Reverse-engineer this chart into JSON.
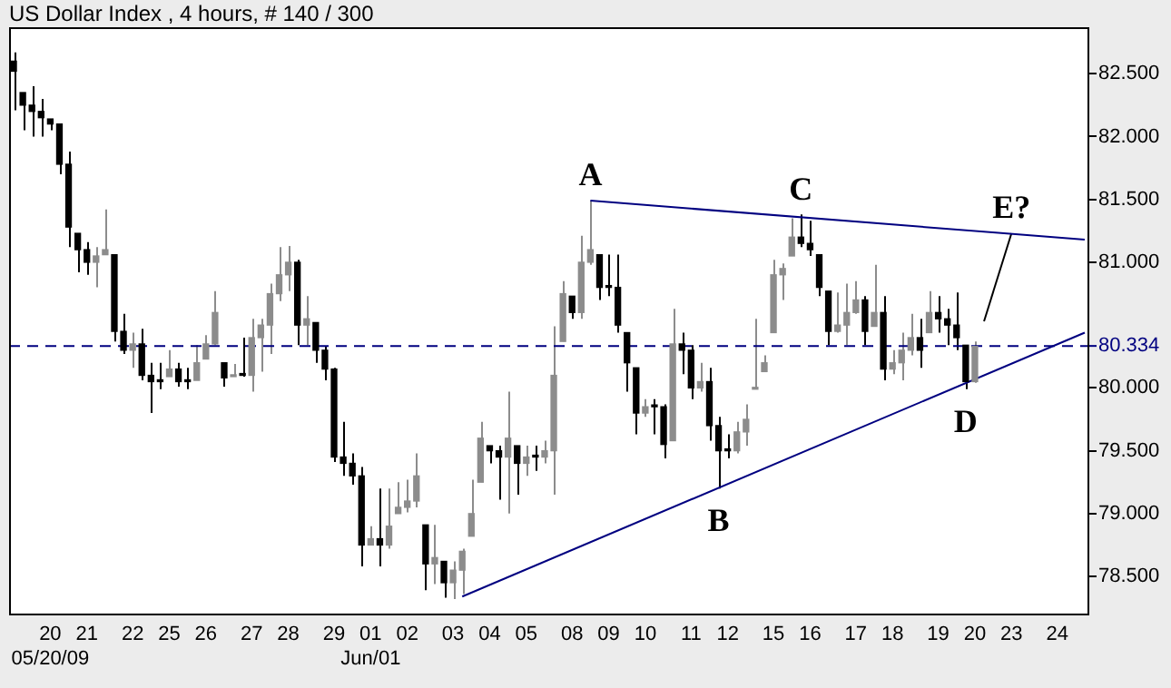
{
  "chart_data": {
    "type": "candlestick",
    "title": "US Dollar Index , 4 hours, # 140 / 300",
    "colors": [
      "#000000",
      "#000000",
      "#000000",
      "#000000",
      "#000000",
      "#000000",
      "#000000",
      "#000000",
      "#000000",
      "#8c8c8c",
      "#8c8c8c",
      "#000000",
      "#000000",
      "#8c8c8c",
      "#000000",
      "#000000",
      "#000000",
      "#8c8c8c",
      "#000000",
      "#000000",
      "#8c8c8c",
      "#8c8c8c",
      "#8c8c8c",
      "#000000",
      "#8c8c8c",
      "#000000",
      "#8c8c8c",
      "#8c8c8c",
      "#8c8c8c",
      "#8c8c8c",
      "#8c8c8c",
      "#000000",
      "#8c8c8c",
      "#000000",
      "#000000",
      "#000000",
      "#000000",
      "#000000",
      "#000000",
      "#8c8c8c",
      "#000000",
      "#8c8c8c",
      "#8c8c8c",
      "#8c8c8c",
      "#8c8c8c",
      "#000000",
      "#8c8c8c",
      "#000000",
      "#8c8c8c",
      "#8c8c8c",
      "#8c8c8c",
      "#8c8c8c",
      "#000000",
      "#000000",
      "#8c8c8c",
      "#000000",
      "#8c8c8c",
      "#000000",
      "#8c8c8c",
      "#8c8c8c",
      "#8c8c8c",
      "#000000",
      "#8c8c8c",
      "#8c8c8c",
      "#000000",
      "#000000",
      "#000000",
      "#000000",
      "#000000",
      "#8c8c8c",
      "#000000",
      "#000000",
      "#8c8c8c",
      "#000000",
      "#000000",
      "#8c8c8c",
      "#000000",
      "#000000",
      "#000000",
      "#8c8c8c",
      "#8c8c8c",
      "#8c8c8c",
      "#8c8c8c",
      "#8c8c8c",
      "#8c8c8c",
      "#8c8c8c",
      "#000000",
      "#000000",
      "#000000",
      "#000000",
      "#8c8c8c",
      "#8c8c8c",
      "#8c8c8c",
      "#000000",
      "#8c8c8c",
      "#000000",
      "#8c8c8c",
      "#8c8c8c",
      "#8c8c8c",
      "#000000",
      "#8c8c8c",
      "#000000",
      "#000000",
      "#000000",
      "#000000",
      "#8c8c8c",
      null,
      null,
      null,
      null,
      null,
      null,
      null,
      null,
      null,
      null,
      null,
      null
    ],
    "categories": [
      null,
      null,
      null,
      null,
      "20\n05/20/09",
      null,
      null,
      null,
      "21",
      null,
      null,
      null,
      null,
      "22",
      null,
      null,
      null,
      "25",
      null,
      null,
      null,
      "26",
      null,
      null,
      null,
      null,
      "27",
      null,
      null,
      null,
      "28",
      null,
      null,
      null,
      null,
      "29",
      null,
      null,
      null,
      "01\nJun/01",
      null,
      null,
      null,
      "02",
      null,
      null,
      null,
      null,
      "03",
      null,
      null,
      null,
      "04",
      null,
      null,
      null,
      "05",
      null,
      null,
      null,
      null,
      "08",
      null,
      null,
      null,
      "09",
      null,
      null,
      null,
      "10",
      null,
      null,
      null,
      null,
      "11",
      null,
      null,
      null,
      "12",
      null,
      null,
      null,
      null,
      "15",
      null,
      null,
      null,
      "16",
      null,
      null,
      null,
      null,
      "17",
      null,
      null,
      null,
      "18",
      null,
      null,
      null,
      null,
      "19",
      null,
      null,
      null,
      "20",
      null,
      null,
      null,
      "23",
      null,
      null,
      null,
      null,
      "24",
      null,
      null,
      null
    ],
    "ohlc": [
      [
        82.6,
        82.67,
        82.21,
        82.52
      ],
      [
        82.35,
        82.35,
        82.05,
        82.25
      ],
      [
        82.25,
        82.4,
        82.0,
        82.2
      ],
      [
        82.2,
        82.3,
        82.0,
        82.15
      ],
      [
        82.14,
        82.14,
        82.05,
        82.1
      ],
      [
        82.1,
        82.1,
        81.7,
        81.78
      ],
      [
        81.78,
        81.88,
        81.12,
        81.28
      ],
      [
        81.23,
        81.23,
        80.92,
        81.1
      ],
      [
        81.1,
        81.16,
        80.9,
        81.0
      ],
      [
        81.0,
        81.12,
        80.8,
        81.05
      ],
      [
        81.06,
        81.42,
        81.06,
        81.1
      ],
      [
        81.06,
        81.06,
        80.37,
        80.45
      ],
      [
        80.45,
        80.59,
        80.27,
        80.3
      ],
      [
        80.3,
        80.44,
        80.16,
        80.35
      ],
      [
        80.35,
        80.47,
        80.06,
        80.1
      ],
      [
        80.1,
        80.2,
        79.8,
        80.05
      ],
      [
        80.05,
        80.2,
        79.99,
        80.05
      ],
      [
        80.09,
        80.3,
        80.09,
        80.15
      ],
      [
        80.15,
        80.2,
        80.01,
        80.05
      ],
      [
        80.05,
        80.16,
        79.99,
        80.05
      ],
      [
        80.06,
        80.34,
        80.06,
        80.2
      ],
      [
        80.23,
        80.42,
        80.23,
        80.35
      ],
      [
        80.35,
        80.77,
        80.34,
        80.6
      ],
      [
        80.2,
        80.2,
        80.01,
        80.08
      ],
      [
        80.09,
        80.19,
        80.09,
        80.1
      ],
      [
        80.1,
        80.4,
        80.09,
        80.1
      ],
      [
        80.1,
        80.55,
        79.97,
        80.4
      ],
      [
        80.4,
        80.55,
        80.13,
        80.5
      ],
      [
        80.5,
        80.83,
        80.27,
        80.75
      ],
      [
        80.75,
        81.12,
        80.69,
        80.9
      ],
      [
        80.9,
        81.13,
        80.77,
        81.0
      ],
      [
        81.0,
        81.02,
        80.34,
        80.5
      ],
      [
        80.5,
        80.73,
        80.34,
        80.55
      ],
      [
        80.52,
        80.52,
        80.2,
        80.3
      ],
      [
        80.3,
        80.33,
        80.06,
        80.15
      ],
      [
        80.15,
        80.16,
        79.41,
        79.45
      ],
      [
        79.45,
        79.73,
        79.3,
        79.4
      ],
      [
        79.4,
        79.48,
        79.23,
        79.3
      ],
      [
        79.3,
        79.37,
        78.58,
        78.75
      ],
      [
        78.75,
        78.9,
        78.75,
        78.8
      ],
      [
        78.8,
        79.2,
        78.58,
        78.75
      ],
      [
        78.75,
        79.2,
        78.72,
        78.9
      ],
      [
        79.0,
        79.25,
        79.0,
        79.05
      ],
      [
        79.05,
        79.27,
        79.01,
        79.1
      ],
      [
        79.1,
        79.48,
        79.05,
        79.3
      ],
      [
        78.91,
        78.91,
        78.39,
        78.6
      ],
      [
        78.6,
        78.91,
        78.44,
        78.65
      ],
      [
        78.62,
        78.62,
        78.33,
        78.45
      ],
      [
        78.45,
        78.62,
        78.32,
        78.55
      ],
      [
        78.55,
        78.72,
        78.36,
        78.7
      ],
      [
        78.82,
        79.27,
        78.82,
        79.0
      ],
      [
        79.25,
        79.73,
        79.25,
        79.6
      ],
      [
        79.54,
        79.54,
        79.4,
        79.5
      ],
      [
        79.5,
        79.54,
        79.11,
        79.45
      ],
      [
        79.45,
        79.97,
        79.0,
        79.6
      ],
      [
        79.54,
        79.54,
        79.15,
        79.4
      ],
      [
        79.4,
        79.54,
        79.3,
        79.45
      ],
      [
        79.45,
        79.54,
        79.34,
        79.45
      ],
      [
        79.45,
        79.58,
        79.4,
        79.5
      ],
      [
        79.5,
        80.49,
        79.15,
        80.1
      ],
      [
        80.37,
        80.85,
        80.37,
        80.75
      ],
      [
        80.73,
        80.73,
        80.55,
        80.6
      ],
      [
        80.6,
        81.21,
        80.55,
        81.0
      ],
      [
        81.0,
        81.49,
        80.98,
        81.1
      ],
      [
        81.06,
        81.06,
        80.7,
        80.8
      ],
      [
        80.8,
        81.06,
        80.73,
        80.8
      ],
      [
        80.8,
        81.06,
        80.44,
        80.5
      ],
      [
        80.44,
        80.44,
        79.97,
        80.2
      ],
      [
        80.16,
        80.16,
        79.63,
        79.8
      ],
      [
        79.8,
        79.91,
        79.77,
        79.85
      ],
      [
        79.85,
        79.91,
        79.63,
        79.85
      ],
      [
        79.85,
        79.87,
        79.44,
        79.55
      ],
      [
        79.58,
        80.63,
        79.58,
        80.35
      ],
      [
        80.35,
        80.44,
        80.11,
        80.3
      ],
      [
        80.3,
        80.34,
        79.91,
        80.0
      ],
      [
        80.0,
        80.2,
        79.97,
        80.05
      ],
      [
        80.05,
        80.16,
        79.58,
        79.7
      ],
      [
        79.7,
        79.77,
        79.2,
        79.5
      ],
      [
        79.5,
        79.63,
        79.44,
        79.5
      ],
      [
        79.5,
        79.73,
        79.48,
        79.65
      ],
      [
        79.65,
        79.87,
        79.54,
        79.75
      ],
      [
        79.99,
        80.55,
        79.99,
        80.0
      ],
      [
        80.13,
        80.26,
        80.13,
        80.2
      ],
      [
        80.44,
        81.02,
        80.44,
        80.9
      ],
      [
        80.9,
        80.99,
        80.7,
        80.95
      ],
      [
        81.05,
        81.35,
        81.05,
        81.2
      ],
      [
        81.2,
        81.38,
        81.12,
        81.15
      ],
      [
        81.15,
        81.33,
        81.05,
        81.1
      ],
      [
        81.06,
        81.06,
        80.73,
        80.8
      ],
      [
        80.77,
        80.77,
        80.34,
        80.45
      ],
      [
        80.45,
        80.76,
        80.44,
        80.5
      ],
      [
        80.5,
        80.83,
        80.34,
        80.6
      ],
      [
        80.6,
        80.85,
        80.59,
        80.7
      ],
      [
        80.7,
        80.73,
        80.34,
        80.45
      ],
      [
        80.49,
        80.98,
        80.49,
        80.6
      ],
      [
        80.6,
        80.73,
        80.06,
        80.15
      ],
      [
        80.15,
        80.3,
        80.11,
        80.2
      ],
      [
        80.2,
        80.44,
        80.06,
        80.3
      ],
      [
        80.3,
        80.59,
        80.26,
        80.4
      ],
      [
        80.4,
        80.55,
        80.16,
        80.3
      ],
      [
        80.44,
        80.77,
        80.44,
        80.6
      ],
      [
        80.6,
        80.73,
        80.44,
        80.55
      ],
      [
        80.55,
        80.63,
        80.34,
        80.5
      ],
      [
        80.5,
        80.76,
        80.3,
        80.4
      ],
      [
        80.34,
        80.34,
        79.99,
        80.05
      ],
      [
        80.05,
        80.37,
        80.04,
        80.33
      ],
      null,
      null,
      null,
      null,
      null,
      null,
      null,
      null,
      null,
      null,
      null,
      null
    ],
    "series": [
      {
        "type": "line",
        "color": "#000080",
        "values": [
          null,
          null,
          null,
          null,
          null,
          null,
          null,
          null,
          null,
          null,
          null,
          null,
          null,
          null,
          null,
          null,
          null,
          null,
          null,
          null,
          null,
          null,
          null,
          null,
          null,
          null,
          null,
          null,
          null,
          null,
          null,
          null,
          null,
          null,
          null,
          null,
          null,
          null,
          null,
          null,
          null,
          null,
          null,
          null,
          null,
          null,
          null,
          null,
          null,
          null,
          null,
          null,
          null,
          null,
          null,
          null,
          null,
          null,
          null,
          null,
          null,
          null,
          null,
          81.49,
          null,
          null,
          null,
          null,
          null,
          null,
          null,
          null,
          null,
          null,
          null,
          null,
          null,
          null,
          null,
          null,
          null,
          null,
          null,
          null,
          null,
          null,
          null,
          null,
          null,
          null,
          null,
          null,
          null,
          null,
          null,
          null,
          null,
          null,
          null,
          null,
          null,
          null,
          null,
          null,
          null,
          null,
          null,
          null,
          null,
          null,
          null,
          null,
          null,
          null,
          null,
          null,
          null,
          81.18
        ]
      },
      {
        "type": "line",
        "color": "#000080",
        "values": [
          null,
          null,
          null,
          null,
          null,
          null,
          null,
          null,
          null,
          null,
          null,
          null,
          null,
          null,
          null,
          null,
          null,
          null,
          null,
          null,
          null,
          null,
          null,
          null,
          null,
          null,
          null,
          null,
          null,
          null,
          null,
          null,
          null,
          null,
          null,
          null,
          null,
          null,
          null,
          null,
          null,
          null,
          null,
          null,
          null,
          null,
          null,
          null,
          null,
          78.34,
          null,
          null,
          null,
          null,
          null,
          null,
          null,
          null,
          null,
          null,
          null,
          null,
          null,
          null,
          null,
          null,
          null,
          null,
          null,
          null,
          null,
          null,
          null,
          null,
          null,
          null,
          null,
          null,
          null,
          null,
          null,
          null,
          null,
          null,
          null,
          null,
          null,
          null,
          null,
          null,
          null,
          null,
          null,
          null,
          null,
          null,
          null,
          null,
          null,
          null,
          null,
          null,
          null,
          null,
          null,
          null,
          null,
          null,
          null,
          null,
          null,
          null,
          null,
          null,
          null,
          null,
          null,
          80.44
        ]
      },
      {
        "type": "line",
        "color": "#000000",
        "values": [
          null,
          null,
          null,
          null,
          null,
          null,
          null,
          null,
          null,
          null,
          null,
          null,
          null,
          null,
          null,
          null,
          null,
          null,
          null,
          null,
          null,
          null,
          null,
          null,
          null,
          null,
          null,
          null,
          null,
          null,
          null,
          null,
          null,
          null,
          null,
          null,
          null,
          null,
          null,
          null,
          null,
          null,
          null,
          null,
          null,
          null,
          null,
          null,
          null,
          null,
          null,
          null,
          null,
          null,
          null,
          null,
          null,
          null,
          null,
          null,
          null,
          null,
          null,
          null,
          null,
          null,
          null,
          null,
          null,
          null,
          null,
          null,
          null,
          null,
          null,
          null,
          null,
          null,
          null,
          null,
          null,
          null,
          null,
          null,
          null,
          null,
          null,
          null,
          null,
          null,
          null,
          null,
          null,
          null,
          null,
          null,
          null,
          null,
          null,
          null,
          null,
          null,
          null,
          null,
          null,
          null,
          80.53,
          null,
          null,
          81.23,
          null,
          null,
          null,
          null,
          null,
          null,
          null,
          null
        ]
      }
    ],
    "ylim": [
      78.19,
      82.87
    ],
    "yticks": [
      {
        "value": 78.5,
        "label": "78.500"
      },
      {
        "value": 79,
        "label": "79.000"
      },
      {
        "value": 79.5,
        "label": "79.500"
      },
      {
        "value": 80,
        "label": "80.000"
      },
      {
        "value": 81,
        "label": "81.000"
      },
      {
        "value": 81.5,
        "label": "81.500"
      },
      {
        "value": 82,
        "label": "82.000"
      },
      {
        "value": 82.5,
        "label": "82.500"
      }
    ],
    "ref_lines": [
      {
        "axis": "y",
        "value": 80.334,
        "label": "80.334",
        "color": "#000080",
        "line_style": "dashed"
      }
    ],
    "annotations": [
      {
        "text": "A",
        "y": 81.49
      },
      {
        "text": "B",
        "y": 79.2
      },
      {
        "text": "C",
        "y": 81.38
      },
      {
        "text": "D",
        "y": 79.99
      },
      {
        "text": "E?",
        "y": 81.23
      }
    ],
    "grid": false,
    "legend": false
  }
}
